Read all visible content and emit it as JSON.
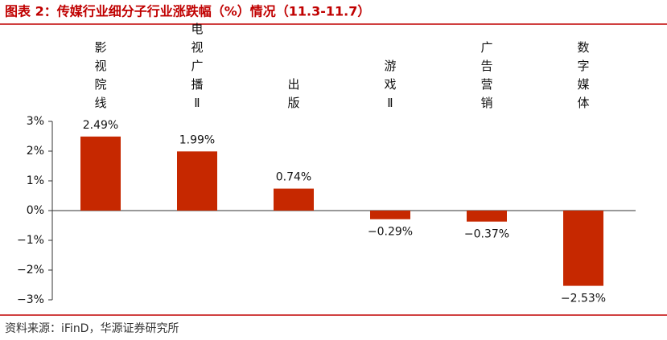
{
  "chart_data": {
    "type": "bar",
    "title": "图表 2：传媒行业细分子行业涨跌幅（%）情况（11.3-11.7）",
    "source": "资料来源：iFinD，华源证券研究所",
    "categories": [
      "影视院线",
      "电视广播Ⅱ",
      "出版",
      "游戏Ⅱ",
      "广告营销",
      "数字媒体"
    ],
    "values": [
      2.49,
      1.99,
      0.74,
      -0.29,
      -0.37,
      -2.53
    ],
    "value_labels": [
      "2.49%",
      "1.99%",
      "0.74%",
      "−0.29%",
      "−0.37%",
      "−2.53%"
    ],
    "color": "#c62800",
    "ylim": [
      -3,
      3
    ],
    "yticks": [
      {
        "value": -3,
        "label": "−3%"
      },
      {
        "value": -2,
        "label": "−2%"
      },
      {
        "value": -1,
        "label": "−1%"
      },
      {
        "value": 0,
        "label": "0%"
      },
      {
        "value": 1,
        "label": "1%"
      },
      {
        "value": 2,
        "label": "2%"
      },
      {
        "value": 3,
        "label": "3%"
      }
    ],
    "grid": false
  }
}
